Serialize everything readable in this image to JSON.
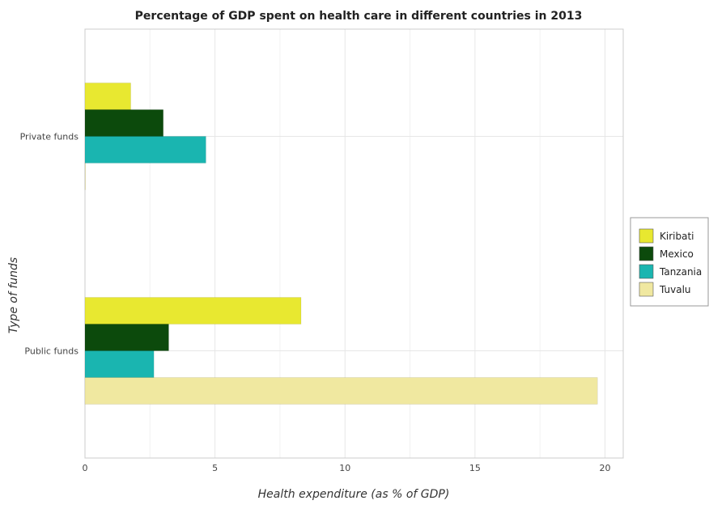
{
  "chart_data": {
    "type": "bar",
    "orientation": "horizontal",
    "title": "Percentage of GDP spent on health care in different countries in 2013",
    "xlabel": "Health expenditure (as % of GDP)",
    "ylabel": "Type of funds",
    "categories": [
      "Private funds",
      "Public funds"
    ],
    "series": [
      {
        "name": "Kiribati",
        "color": "#e8e830",
        "values": [
          1.76,
          8.31
        ]
      },
      {
        "name": "Mexico",
        "color": "#0c4a0c",
        "values": [
          3.01,
          3.22
        ]
      },
      {
        "name": "Tanzania",
        "color": "#1ab5b0",
        "values": [
          4.65,
          2.65
        ]
      },
      {
        "name": "Tuvalu",
        "color": "#f0e8a0",
        "values": [
          0.01,
          19.71
        ]
      }
    ],
    "xlim": [
      0,
      20.7
    ],
    "xticks": [
      0,
      5,
      10,
      15,
      20
    ],
    "grid": true,
    "legend_position": "right"
  }
}
